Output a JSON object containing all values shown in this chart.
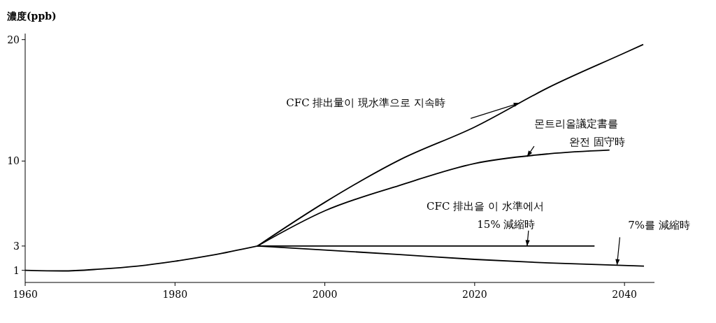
{
  "chart_data": {
    "type": "line",
    "ylabel": "濃度(ppb)",
    "xlim": [
      1960,
      2044
    ],
    "xticks": [
      1960,
      1980,
      2000,
      2020,
      2040
    ],
    "ylim": [
      0,
      20.5
    ],
    "yticks": [
      1,
      3,
      10,
      20
    ],
    "grid": false,
    "legend": false,
    "line_style": "solid",
    "series": [
      {
        "color": "#000000",
        "x": [
          1960,
          1965,
          1970,
          1975,
          1980,
          1985,
          1991
        ],
        "values": [
          1,
          0.95,
          1.1,
          1.35,
          1.75,
          2.25,
          3
        ]
      },
      {
        "name": "CFC 排出量이 現水準으로 지속時",
        "color": "#000000",
        "x": [
          1991,
          2000,
          2010,
          2020,
          2030,
          2040,
          2042.5
        ],
        "values": [
          3,
          6.6,
          10.1,
          12.8,
          16.1,
          18.9,
          19.6
        ]
      },
      {
        "name": "몬트리올議定書를 완전 固守時",
        "color": "#000000",
        "x": [
          1991,
          2000,
          2010,
          2020,
          2030,
          2038
        ],
        "values": [
          3,
          5.9,
          8,
          9.8,
          10.6,
          10.9
        ]
      },
      {
        "name": "CFC 排出을 이 水準에서 15% 減縮時",
        "color": "#000000",
        "x": [
          1991,
          2036
        ],
        "values": [
          3,
          3
        ]
      },
      {
        "name": "7%를 減縮時",
        "color": "#000000",
        "x": [
          1991,
          2010,
          2020,
          2030,
          2042.6
        ],
        "values": [
          3,
          2.3,
          1.9,
          1.6,
          1.35
        ]
      }
    ]
  }
}
